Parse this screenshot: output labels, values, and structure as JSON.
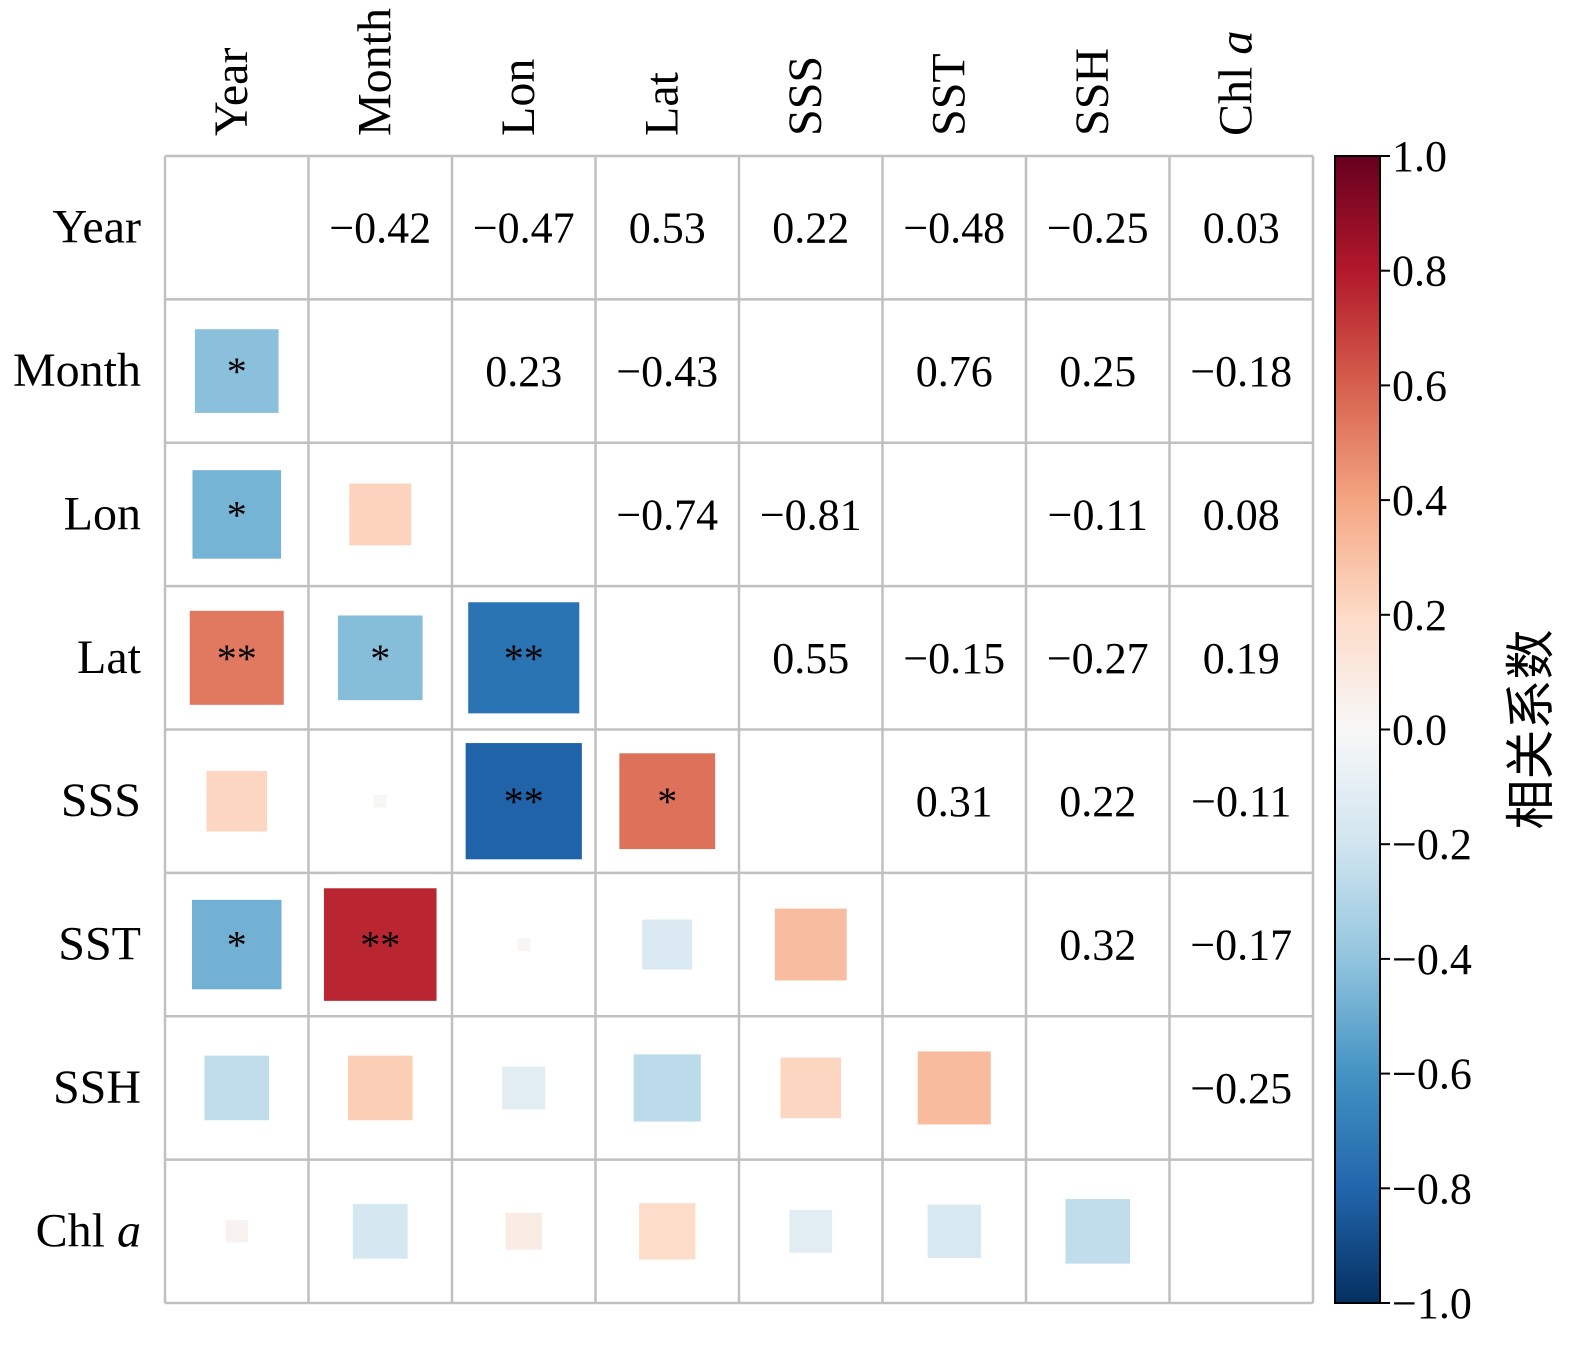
{
  "chart_data": {
    "type": "heatmap",
    "variables": [
      "Year",
      "Month",
      "Lon",
      "Lat",
      "SSS",
      "SST",
      "SSH",
      "Chl a"
    ],
    "variables_plain": [
      "Year",
      "Month",
      "Lon",
      "Lat",
      "SSS",
      "SST",
      "SSH",
      "Chl"
    ],
    "italic_suffix": [
      "",
      "",
      "",
      "",
      "",
      "",
      "",
      "a"
    ],
    "upper_labels": [
      [
        "",
        "−0.42",
        "−0.47",
        "0.53",
        "0.22",
        "−0.48",
        "−0.25",
        "0.03"
      ],
      [
        "",
        "",
        "0.23",
        "−0.43",
        "",
        "0.76",
        "0.25",
        "−0.18"
      ],
      [
        "",
        "",
        "",
        "−0.74",
        "−0.81",
        "",
        "−0.11",
        "0.08"
      ],
      [
        "",
        "",
        "",
        "",
        "0.55",
        "−0.15",
        "−0.27",
        "0.19"
      ],
      [
        "",
        "",
        "",
        "",
        "",
        "0.31",
        "0.22",
        "−0.11"
      ],
      [
        "",
        "",
        "",
        "",
        "",
        "",
        "0.32",
        "−0.17"
      ],
      [
        "",
        "",
        "",
        "",
        "",
        "",
        "",
        "−0.25"
      ],
      [
        "",
        "",
        "",
        "",
        "",
        "",
        "",
        ""
      ]
    ],
    "lower_cells": [
      {
        "row": 1,
        "col": 0,
        "value": -0.42,
        "stars": "*"
      },
      {
        "row": 2,
        "col": 0,
        "value": -0.47,
        "stars": "*"
      },
      {
        "row": 2,
        "col": 1,
        "value": 0.23,
        "stars": ""
      },
      {
        "row": 3,
        "col": 0,
        "value": 0.53,
        "stars": "**"
      },
      {
        "row": 3,
        "col": 1,
        "value": -0.43,
        "stars": "*"
      },
      {
        "row": 3,
        "col": 2,
        "value": -0.74,
        "stars": "**"
      },
      {
        "row": 4,
        "col": 0,
        "value": 0.22,
        "stars": ""
      },
      {
        "row": 4,
        "col": 1,
        "value": 0.01,
        "stars": ""
      },
      {
        "row": 4,
        "col": 2,
        "value": -0.81,
        "stars": "**"
      },
      {
        "row": 4,
        "col": 3,
        "value": 0.55,
        "stars": "*"
      },
      {
        "row": 5,
        "col": 0,
        "value": -0.48,
        "stars": "*"
      },
      {
        "row": 5,
        "col": 1,
        "value": 0.76,
        "stars": "**"
      },
      {
        "row": 5,
        "col": 2,
        "value": 0.01,
        "stars": ""
      },
      {
        "row": 5,
        "col": 3,
        "value": -0.15,
        "stars": ""
      },
      {
        "row": 5,
        "col": 4,
        "value": 0.31,
        "stars": ""
      },
      {
        "row": 6,
        "col": 0,
        "value": -0.25,
        "stars": ""
      },
      {
        "row": 6,
        "col": 1,
        "value": 0.25,
        "stars": ""
      },
      {
        "row": 6,
        "col": 2,
        "value": -0.11,
        "stars": ""
      },
      {
        "row": 6,
        "col": 3,
        "value": -0.27,
        "stars": ""
      },
      {
        "row": 6,
        "col": 4,
        "value": 0.22,
        "stars": ""
      },
      {
        "row": 6,
        "col": 5,
        "value": 0.32,
        "stars": ""
      },
      {
        "row": 7,
        "col": 0,
        "value": 0.03,
        "stars": ""
      },
      {
        "row": 7,
        "col": 1,
        "value": -0.18,
        "stars": ""
      },
      {
        "row": 7,
        "col": 2,
        "value": 0.08,
        "stars": ""
      },
      {
        "row": 7,
        "col": 3,
        "value": 0.19,
        "stars": ""
      },
      {
        "row": 7,
        "col": 4,
        "value": -0.11,
        "stars": ""
      },
      {
        "row": 7,
        "col": 5,
        "value": -0.17,
        "stars": ""
      },
      {
        "row": 7,
        "col": 6,
        "value": -0.25,
        "stars": ""
      }
    ],
    "colorbar": {
      "label": "相关系数",
      "range": [
        -1.0,
        1.0
      ],
      "ticks": [
        1.0,
        0.8,
        0.6,
        0.4,
        0.2,
        0.0,
        -0.2,
        -0.4,
        -0.6,
        -0.8,
        -1.0
      ],
      "tick_labels": [
        "1.0",
        "0.8",
        "0.6",
        "0.4",
        "0.2",
        "0.0",
        "−0.2",
        "−0.4",
        "−0.6",
        "−0.8",
        "−1.0"
      ],
      "colormap": "RdBu_r",
      "colors": [
        "#053061",
        "#2166ac",
        "#4393c3",
        "#92c5de",
        "#d1e5f0",
        "#f7f7f7",
        "#fddbc7",
        "#f4a582",
        "#d6604d",
        "#b2182b",
        "#67001f"
      ]
    },
    "grid_color": "#c0c0c0"
  }
}
